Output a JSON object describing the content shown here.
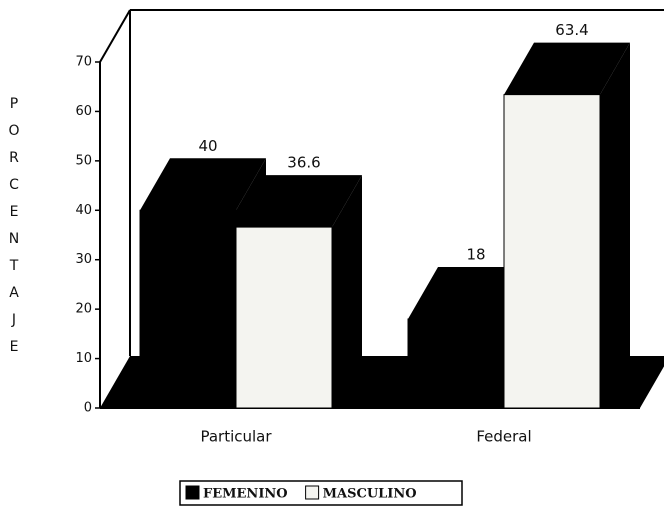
{
  "chart_data": {
    "type": "bar3d",
    "y_label": "PORCENTAJE",
    "categories": [
      "Particular",
      "Federal"
    ],
    "series": [
      {
        "name": "FEMENINO",
        "color": "#000000",
        "values": [
          40,
          18
        ]
      },
      {
        "name": "MASCULINO",
        "color": "#f4f4f0",
        "values": [
          36.6,
          63.4
        ]
      }
    ],
    "ylim": [
      0,
      70
    ],
    "yticks": [
      0,
      10,
      20,
      30,
      40,
      50,
      60,
      70
    ]
  }
}
